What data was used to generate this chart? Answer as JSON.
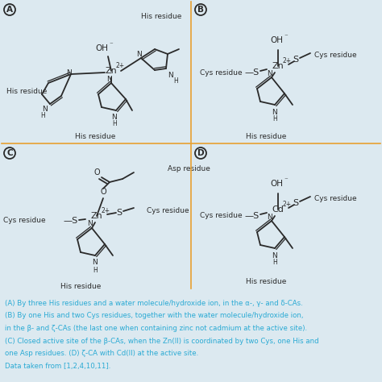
{
  "bg_color": "#dce9f0",
  "border_color": "#e8a030",
  "text_color": "#2a2a2a",
  "caption_color": "#2aaad4",
  "bond_color": "#2a2a2a",
  "caption_lines": [
    "(A) By three His residues and a water molecule/hydroxide ion, in the α-, γ- and δ-CAs.",
    "(B) By one His and two Cys residues, together with the water molecule/hydroxide ion,",
    "in the β- and ζ-CAs (the last one when containing zinc not cadmium at the active site).",
    "(C) Closed active site of the β-CAs, when the Zn(II) is coordinated by two Cys, one His and",
    "one Asp residues. (D) ζ-CA with Cd(II) at the active site.",
    "Data taken from [1,2,4,10,11]."
  ],
  "figsize": [
    4.74,
    4.74
  ],
  "dpi": 100
}
